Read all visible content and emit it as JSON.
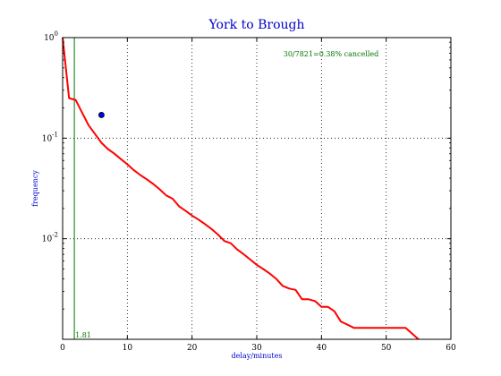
{
  "chart_data": {
    "type": "line",
    "title": "York to Brough",
    "xlabel": "delay/minutes",
    "ylabel": "frequency",
    "xlim": [
      0,
      60
    ],
    "ylim": [
      0.001,
      1.0
    ],
    "y_scale": "log",
    "grid": true,
    "x_ticks": [
      0,
      10,
      20,
      30,
      40,
      50,
      60
    ],
    "x_tick_labels": [
      "0",
      "10",
      "20",
      "30",
      "40",
      "50",
      "60"
    ],
    "y_ticks": [
      1.0,
      0.1,
      0.01
    ],
    "y_tick_labels": [
      {
        "base": "10",
        "exp": "0"
      },
      {
        "base": "10",
        "exp": "-1"
      },
      {
        "base": "10",
        "exp": "-2"
      }
    ],
    "series": [
      {
        "color": "#ff0000",
        "x": [
          0,
          0.5,
          1,
          1.5,
          2,
          3,
          4,
          5,
          6,
          7,
          8,
          9,
          10,
          11,
          12,
          13,
          14,
          15,
          16,
          17,
          18,
          19,
          20,
          21,
          22,
          23,
          24,
          25,
          26,
          27,
          28,
          29,
          30,
          31,
          32,
          33,
          34,
          35,
          36,
          37,
          38,
          39,
          40,
          41,
          42,
          43,
          44,
          45,
          53,
          55
        ],
        "y": [
          1.0,
          0.5,
          0.25,
          0.245,
          0.24,
          0.18,
          0.135,
          0.11,
          0.09,
          0.078,
          0.07,
          0.062,
          0.055,
          0.048,
          0.043,
          0.039,
          0.035,
          0.031,
          0.027,
          0.025,
          0.021,
          0.019,
          0.017,
          0.0155,
          0.014,
          0.0125,
          0.011,
          0.0095,
          0.009,
          0.0078,
          0.007,
          0.0062,
          0.0055,
          0.005,
          0.0045,
          0.004,
          0.0034,
          0.0032,
          0.0031,
          0.0025,
          0.0025,
          0.0024,
          0.0021,
          0.0021,
          0.0019,
          0.0015,
          0.0014,
          0.0013,
          0.0013,
          0.001
        ]
      }
    ],
    "reference_line": {
      "x": 1.81,
      "label": "1.81",
      "color": "#007700"
    },
    "marker": {
      "x": 6,
      "y": 0.17,
      "color": "#0000ff"
    },
    "annotation": {
      "text": "30/7821=0.38% cancelled",
      "color": "#007700"
    }
  }
}
